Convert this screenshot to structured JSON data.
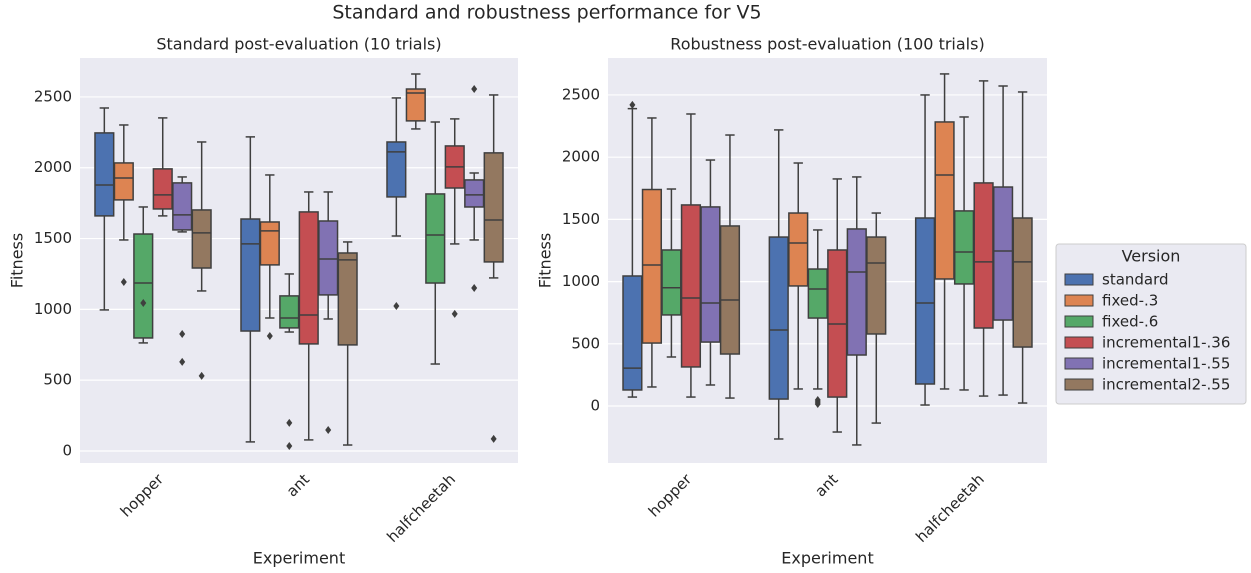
{
  "title": "Standard and robustness performance for V5",
  "chart_data": [
    {
      "type": "box",
      "title": "Standard post-evaluation (10 trials)",
      "xlabel": "Experiment",
      "ylabel": "Fitness",
      "categories": [
        "hopper",
        "ant",
        "halfcheetah"
      ],
      "ylim": [
        -85,
        2775
      ],
      "yticks": [
        0,
        500,
        1000,
        1500,
        2000,
        2500
      ],
      "grid": true,
      "series": [
        {
          "name": "standard",
          "color": "#4c72b0",
          "values": [
            {
              "min": 996,
              "q1": 1660,
              "median": 1878,
              "q3": 2246,
              "max": 2422,
              "outliers": []
            },
            {
              "min": 64,
              "q1": 847,
              "median": 1462,
              "q3": 1638,
              "max": 2218,
              "outliers": []
            },
            {
              "min": 1518,
              "q1": 1794,
              "median": 2112,
              "q3": 2182,
              "max": 2493,
              "outliers": [
                1024
              ]
            }
          ]
        },
        {
          "name": "fixed-.3",
          "color": "#dd8452",
          "values": [
            {
              "min": 1490,
              "q1": 1773,
              "median": 1928,
              "q3": 2034,
              "max": 2302,
              "outliers": [
                1193
              ]
            },
            {
              "min": 939,
              "q1": 1314,
              "median": 1554,
              "q3": 1617,
              "max": 1949,
              "outliers": [
                812
              ]
            },
            {
              "min": 2274,
              "q1": 2331,
              "median": 2528,
              "q3": 2556,
              "max": 2662,
              "outliers": []
            }
          ]
        },
        {
          "name": "fixed-.6",
          "color": "#55a868",
          "values": [
            {
              "min": 763,
              "q1": 798,
              "median": 1186,
              "q3": 1532,
              "max": 1723,
              "outliers": [
                1045
              ]
            },
            {
              "min": 840,
              "q1": 869,
              "median": 939,
              "q3": 1095,
              "max": 1250,
              "outliers": [
                198,
                35
              ]
            },
            {
              "min": 614,
              "q1": 1186,
              "median": 1525,
              "q3": 1815,
              "max": 2323,
              "outliers": []
            }
          ]
        },
        {
          "name": "incremental1-.36",
          "color": "#c44e52",
          "values": [
            {
              "min": 1660,
              "q1": 1709,
              "median": 1808,
              "q3": 1992,
              "max": 2352,
              "outliers": []
            },
            {
              "min": 78,
              "q1": 756,
              "median": 960,
              "q3": 1688,
              "max": 1829,
              "outliers": []
            },
            {
              "min": 1462,
              "q1": 1857,
              "median": 2006,
              "q3": 2154,
              "max": 2345,
              "outliers": [
                968
              ]
            }
          ]
        },
        {
          "name": "incremental1-.55",
          "color": "#8172b3",
          "values": [
            {
              "min": 1547,
              "q1": 1561,
              "median": 1667,
              "q3": 1893,
              "max": 1935,
              "outliers": [
                826,
                629
              ]
            },
            {
              "min": 932,
              "q1": 1102,
              "median": 1356,
              "q3": 1624,
              "max": 1829,
              "outliers": [
                148
              ]
            },
            {
              "min": 1490,
              "q1": 1723,
              "median": 1808,
              "q3": 1914,
              "max": 1963,
              "outliers": [
                1151,
                2556
              ]
            }
          ]
        },
        {
          "name": "incremental2-.55",
          "color": "#937860",
          "values": [
            {
              "min": 1130,
              "q1": 1292,
              "median": 1540,
              "q3": 1702,
              "max": 2182,
              "outliers": [
                530
              ]
            },
            {
              "min": 42,
              "q1": 749,
              "median": 1349,
              "q3": 1398,
              "max": 1476,
              "outliers": []
            },
            {
              "min": 1222,
              "q1": 1335,
              "median": 1631,
              "q3": 2105,
              "max": 2514,
              "outliers": [
                85
              ]
            }
          ]
        }
      ]
    },
    {
      "type": "box",
      "title": "Robustness post-evaluation (100 trials)",
      "xlabel": "Experiment",
      "ylabel": "Fitness",
      "categories": [
        "hopper",
        "ant",
        "halfcheetah"
      ],
      "ylim": [
        -458,
        2797
      ],
      "yticks": [
        0,
        500,
        1000,
        1500,
        2000,
        2500
      ],
      "grid": true,
      "legend_title": "Version",
      "legend": "outside right",
      "series": [
        {
          "name": "standard",
          "color": "#4c72b0",
          "values": [
            {
              "min": 72,
              "q1": 129,
              "median": 305,
              "q3": 1045,
              "max": 2390,
              "outliers": [
                2420
              ]
            },
            {
              "min": -265,
              "q1": 56,
              "median": 611,
              "q3": 1358,
              "max": 2219,
              "outliers": []
            },
            {
              "min": 8,
              "q1": 177,
              "median": 828,
              "q3": 1511,
              "max": 2500,
              "outliers": []
            }
          ]
        },
        {
          "name": "fixed-.3",
          "color": "#dd8452",
          "values": [
            {
              "min": 153,
              "q1": 506,
              "median": 1133,
              "q3": 1740,
              "max": 2315,
              "outliers": []
            },
            {
              "min": 137,
              "q1": 965,
              "median": 1310,
              "q3": 1551,
              "max": 1953,
              "outliers": []
            },
            {
              "min": 137,
              "q1": 1021,
              "median": 1857,
              "q3": 2283,
              "max": 2669,
              "outliers": []
            }
          ]
        },
        {
          "name": "fixed-.6",
          "color": "#55a868",
          "values": [
            {
              "min": 394,
              "q1": 732,
              "median": 950,
              "q3": 1254,
              "max": 1744,
              "outliers": []
            },
            {
              "min": 137,
              "q1": 707,
              "median": 940,
              "q3": 1101,
              "max": 1415,
              "outliers": [
                48,
                32,
                16
              ]
            },
            {
              "min": 129,
              "q1": 981,
              "median": 1238,
              "q3": 1568,
              "max": 2323,
              "outliers": []
            }
          ]
        },
        {
          "name": "incremental1-.36",
          "color": "#c44e52",
          "values": [
            {
              "min": 72,
              "q1": 314,
              "median": 868,
              "q3": 1616,
              "max": 2347,
              "outliers": []
            },
            {
              "min": -209,
              "q1": 72,
              "median": 659,
              "q3": 1254,
              "max": 1825,
              "outliers": []
            },
            {
              "min": 80,
              "q1": 627,
              "median": 1158,
              "q3": 1793,
              "max": 2613,
              "outliers": []
            }
          ]
        },
        {
          "name": "incremental1-.55",
          "color": "#8172b3",
          "values": [
            {
              "min": 169,
              "q1": 514,
              "median": 828,
              "q3": 1600,
              "max": 1977,
              "outliers": []
            },
            {
              "min": -313,
              "q1": 410,
              "median": 1077,
              "q3": 1423,
              "max": 1841,
              "outliers": []
            },
            {
              "min": 88,
              "q1": 691,
              "median": 1246,
              "q3": 1760,
              "max": 2572,
              "outliers": []
            }
          ]
        },
        {
          "name": "incremental2-.55",
          "color": "#937860",
          "values": [
            {
              "min": 64,
              "q1": 418,
              "median": 852,
              "q3": 1447,
              "max": 2178,
              "outliers": []
            },
            {
              "min": -137,
              "q1": 579,
              "median": 1149,
              "q3": 1358,
              "max": 1551,
              "outliers": []
            },
            {
              "min": 24,
              "q1": 474,
              "median": 1158,
              "q3": 1511,
              "max": 2524,
              "outliers": []
            }
          ]
        }
      ]
    }
  ]
}
